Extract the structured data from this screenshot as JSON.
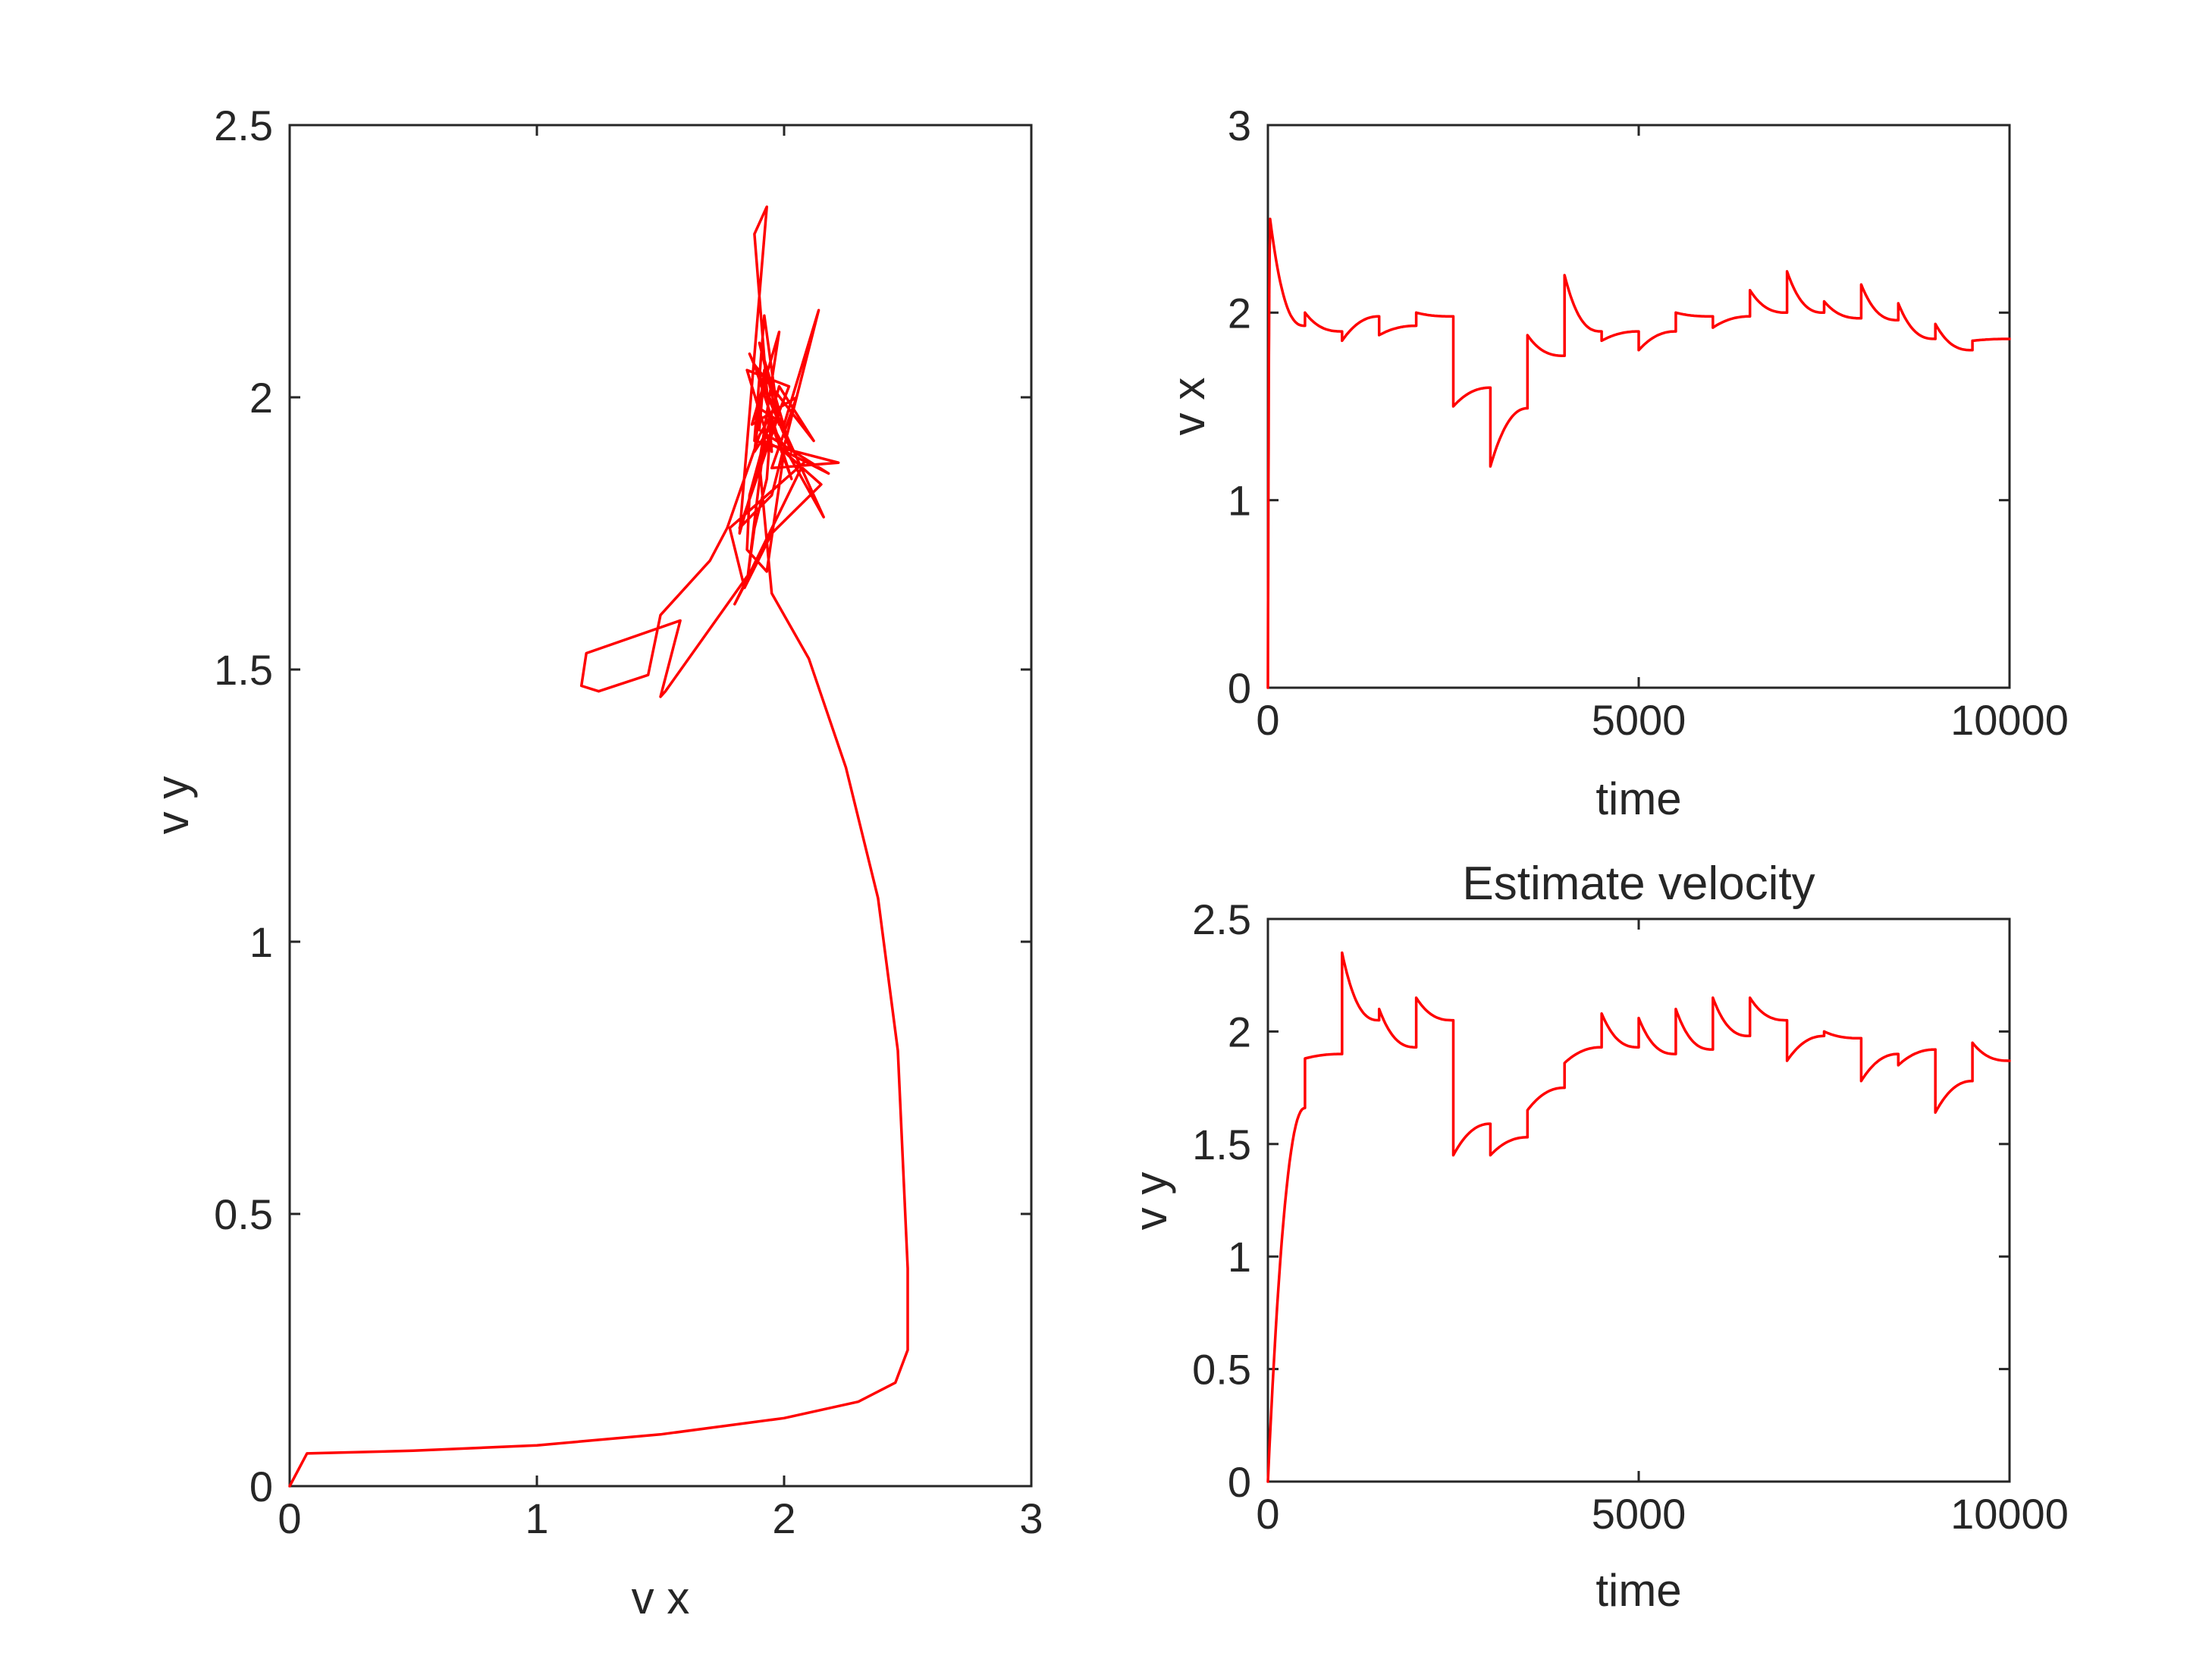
{
  "colors": {
    "series": "#ff0000",
    "axes": "#262626",
    "background": "#ffffff"
  },
  "chart_data": [
    {
      "id": "phase",
      "type": "line",
      "title": "",
      "xlabel": "v x",
      "ylabel": "v y",
      "xlim": [
        0,
        3
      ],
      "ylim": [
        0,
        2.5
      ],
      "xticks": [
        0,
        1,
        2,
        3
      ],
      "xtick_labels": [
        "0",
        "1",
        "2",
        "3"
      ],
      "yticks": [
        0,
        0.5,
        1,
        1.5,
        2,
        2.5
      ],
      "ytick_labels": [
        "0",
        "0.5",
        "1",
        "1.5",
        "2",
        "2.5"
      ],
      "grid": false,
      "series": [
        {
          "x": [
            0,
            0.07,
            0.5,
            1.0,
            1.5,
            2.0,
            2.3,
            2.45,
            2.5,
            2.5,
            2.46,
            2.38,
            2.25,
            2.1,
            1.95,
            1.9,
            1.82,
            1.93,
            1.88,
            1.95,
            1.85,
            2.02,
            1.9,
            1.98,
            1.87,
            2.05,
            1.95,
            2.22,
            1.88,
            1.92,
            1.98,
            1.9,
            2.03,
            1.86,
            2.16,
            1.95,
            2.03,
            1.88,
            2.12,
            1.98,
            1.86,
            1.85,
            1.93,
            2.0,
            2.15,
            1.95,
            1.84,
            1.78,
            2.08,
            1.8,
            1.88,
            1.52,
            1.5,
            1.58,
            1.2,
            1.18,
            1.25,
            1.45,
            1.5,
            1.7,
            1.77,
            1.9,
            1.95,
            1.93,
            1.88,
            1.85,
            1.92,
            2.18,
            1.9,
            1.92,
            1.88,
            1.98,
            1.82,
            1.95,
            2.14,
            2.0,
            1.9
          ],
          "y": [
            0,
            0.06,
            0.065,
            0.075,
            0.095,
            0.125,
            0.155,
            0.19,
            0.25,
            0.4,
            0.8,
            1.08,
            1.32,
            1.52,
            1.64,
            1.88,
            1.75,
            2.35,
            2.3,
            1.9,
            2.05,
            2.02,
            1.88,
            2.12,
            1.95,
            2.0,
            1.87,
            1.88,
            1.92,
            2.15,
            1.95,
            2.1,
            1.9,
            2.08,
            1.78,
            1.95,
            1.85,
            2.06,
            1.92,
            2.02,
            1.82,
            1.72,
            1.68,
            1.9,
            1.84,
            1.75,
            1.65,
            1.76,
            1.88,
            1.62,
            1.69,
            1.46,
            1.45,
            1.59,
            1.53,
            1.47,
            1.46,
            1.49,
            1.6,
            1.7,
            1.76,
            1.93,
            1.97,
            1.85,
            1.76,
            1.66,
            1.92,
            1.86,
            1.94,
            2.05,
            1.9,
            1.97,
            1.76,
            1.82,
            2.16,
            1.95,
            1.98
          ]
        }
      ]
    },
    {
      "id": "vx_time",
      "type": "line",
      "title": "",
      "xlabel": "time",
      "ylabel": "v x",
      "xlim": [
        0,
        10000
      ],
      "ylim": [
        0,
        3
      ],
      "xticks": [
        0,
        5000,
        10000
      ],
      "xtick_labels": [
        "0",
        "5000",
        "10000"
      ],
      "yticks": [
        0,
        1,
        2,
        3
      ],
      "ytick_labels": [
        "0",
        "1",
        "2",
        "3"
      ],
      "grid": false,
      "series": [
        {
          "segments": [
            {
              "t0": 0,
              "t1": 30,
              "v0": 0.0,
              "v1": 2.4,
              "shape": "rise"
            },
            {
              "t0": 30,
              "t1": 500,
              "v0": 2.5,
              "v1": 1.93,
              "shape": "decay"
            },
            {
              "t0": 500,
              "t1": 1000,
              "v0": 2.0,
              "v1": 1.9,
              "shape": "decay"
            },
            {
              "t0": 1000,
              "t1": 1500,
              "v0": 1.85,
              "v1": 1.98,
              "shape": "rise"
            },
            {
              "t0": 1500,
              "t1": 2000,
              "v0": 1.88,
              "v1": 1.93,
              "shape": "rise"
            },
            {
              "t0": 2000,
              "t1": 2500,
              "v0": 2.0,
              "v1": 1.98,
              "shape": "decay"
            },
            {
              "t0": 2500,
              "t1": 3000,
              "v0": 1.5,
              "v1": 1.6,
              "shape": "rise"
            },
            {
              "t0": 3000,
              "t1": 3500,
              "v0": 1.18,
              "v1": 1.49,
              "shape": "rise"
            },
            {
              "t0": 3500,
              "t1": 4000,
              "v0": 1.88,
              "v1": 1.77,
              "shape": "decay"
            },
            {
              "t0": 4000,
              "t1": 4500,
              "v0": 2.2,
              "v1": 1.9,
              "shape": "decay"
            },
            {
              "t0": 4500,
              "t1": 5000,
              "v0": 1.85,
              "v1": 1.9,
              "shape": "rise"
            },
            {
              "t0": 5000,
              "t1": 5500,
              "v0": 1.8,
              "v1": 1.9,
              "shape": "rise"
            },
            {
              "t0": 5500,
              "t1": 6000,
              "v0": 2.0,
              "v1": 1.98,
              "shape": "decay"
            },
            {
              "t0": 6000,
              "t1": 6500,
              "v0": 1.92,
              "v1": 1.98,
              "shape": "rise"
            },
            {
              "t0": 6500,
              "t1": 7000,
              "v0": 2.12,
              "v1": 2.0,
              "shape": "decay"
            },
            {
              "t0": 7000,
              "t1": 7500,
              "v0": 2.22,
              "v1": 2.0,
              "shape": "decay"
            },
            {
              "t0": 7500,
              "t1": 8000,
              "v0": 2.06,
              "v1": 1.97,
              "shape": "decay"
            },
            {
              "t0": 8000,
              "t1": 8500,
              "v0": 2.15,
              "v1": 1.96,
              "shape": "decay"
            },
            {
              "t0": 8500,
              "t1": 9000,
              "v0": 2.05,
              "v1": 1.86,
              "shape": "decay"
            },
            {
              "t0": 9000,
              "t1": 9500,
              "v0": 1.94,
              "v1": 1.8,
              "shape": "decay"
            },
            {
              "t0": 9500,
              "t1": 10000,
              "v0": 1.85,
              "v1": 1.86,
              "shape": "rise"
            }
          ]
        }
      ]
    },
    {
      "id": "vy_time",
      "type": "line",
      "title": "Estimate velocity",
      "xlabel": "time",
      "ylabel": "v y",
      "xlim": [
        0,
        10000
      ],
      "ylim": [
        0,
        2.5
      ],
      "xticks": [
        0,
        5000,
        10000
      ],
      "xtick_labels": [
        "0",
        "5000",
        "10000"
      ],
      "yticks": [
        0,
        0.5,
        1,
        1.5,
        2,
        2.5
      ],
      "ytick_labels": [
        "0",
        "0.5",
        "1",
        "1.5",
        "2",
        "2.5"
      ],
      "grid": false,
      "series": [
        {
          "segments": [
            {
              "t0": 0,
              "t1": 500,
              "v0": 0.0,
              "v1": 1.66,
              "shape": "rise"
            },
            {
              "t0": 500,
              "t1": 1000,
              "v0": 1.88,
              "v1": 1.9,
              "shape": "rise"
            },
            {
              "t0": 1000,
              "t1": 1500,
              "v0": 2.35,
              "v1": 2.05,
              "shape": "decay"
            },
            {
              "t0": 1500,
              "t1": 2000,
              "v0": 2.1,
              "v1": 1.93,
              "shape": "decay"
            },
            {
              "t0": 2000,
              "t1": 2500,
              "v0": 2.15,
              "v1": 2.05,
              "shape": "decay"
            },
            {
              "t0": 2500,
              "t1": 3000,
              "v0": 1.45,
              "v1": 1.59,
              "shape": "rise"
            },
            {
              "t0": 3000,
              "t1": 3500,
              "v0": 1.45,
              "v1": 1.53,
              "shape": "rise"
            },
            {
              "t0": 3500,
              "t1": 4000,
              "v0": 1.65,
              "v1": 1.75,
              "shape": "rise"
            },
            {
              "t0": 4000,
              "t1": 4500,
              "v0": 1.86,
              "v1": 1.93,
              "shape": "rise"
            },
            {
              "t0": 4500,
              "t1": 5000,
              "v0": 2.08,
              "v1": 1.93,
              "shape": "decay"
            },
            {
              "t0": 5000,
              "t1": 5500,
              "v0": 2.06,
              "v1": 1.9,
              "shape": "decay"
            },
            {
              "t0": 5500,
              "t1": 6000,
              "v0": 2.1,
              "v1": 1.92,
              "shape": "decay"
            },
            {
              "t0": 6000,
              "t1": 6500,
              "v0": 2.15,
              "v1": 1.98,
              "shape": "decay"
            },
            {
              "t0": 6500,
              "t1": 7000,
              "v0": 2.15,
              "v1": 2.05,
              "shape": "decay"
            },
            {
              "t0": 7000,
              "t1": 7500,
              "v0": 1.87,
              "v1": 1.98,
              "shape": "rise"
            },
            {
              "t0": 7500,
              "t1": 8000,
              "v0": 2.0,
              "v1": 1.97,
              "shape": "decay"
            },
            {
              "t0": 8000,
              "t1": 8500,
              "v0": 1.78,
              "v1": 1.9,
              "shape": "rise"
            },
            {
              "t0": 8500,
              "t1": 9000,
              "v0": 1.85,
              "v1": 1.92,
              "shape": "rise"
            },
            {
              "t0": 9000,
              "t1": 9500,
              "v0": 1.64,
              "v1": 1.78,
              "shape": "rise"
            },
            {
              "t0": 9500,
              "t1": 10000,
              "v0": 1.95,
              "v1": 1.87,
              "shape": "decay"
            }
          ]
        }
      ]
    }
  ]
}
